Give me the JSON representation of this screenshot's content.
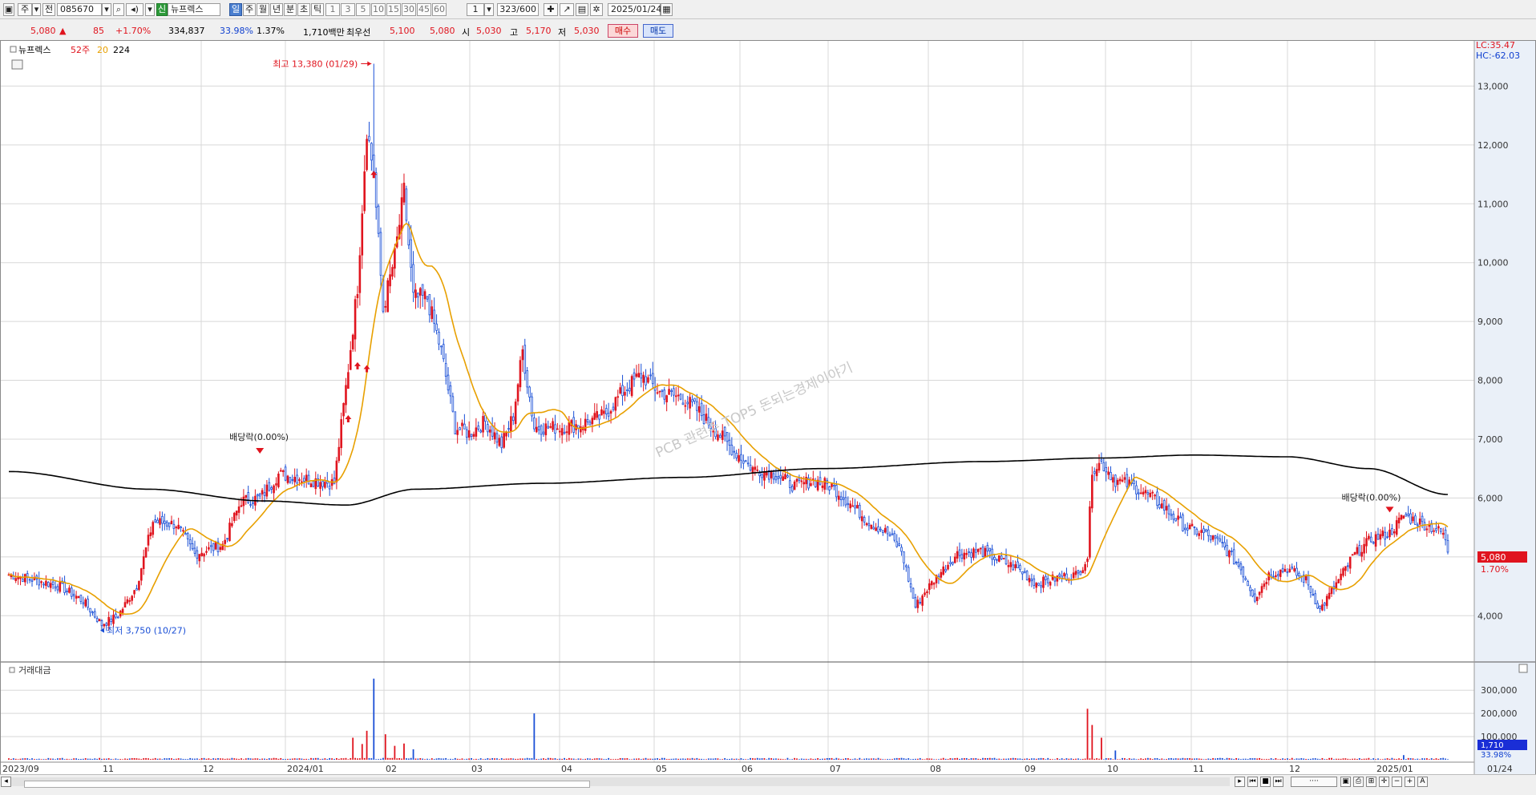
{
  "toolbar": {
    "market_sel": "주",
    "period_prefix": "전",
    "code": "085670",
    "stock_badge": "신",
    "stock_name": "뉴프렉스",
    "periods": [
      "일",
      "주",
      "월",
      "년",
      "분",
      "초",
      "틱"
    ],
    "active_period": "일",
    "minutes": [
      "1",
      "3",
      "5",
      "10",
      "15",
      "30",
      "45",
      "60"
    ],
    "count_sel": "1",
    "view_count": "323/600",
    "date": "2025/01/24"
  },
  "quote": {
    "price": "5,080",
    "up_arrow": "▲",
    "change": "85",
    "change_pct": "+1.70%",
    "volume": "334,837",
    "vol_ratio": "33.98%",
    "turnover": "1.37%",
    "amount": "1,710백만",
    "best_label": "최우선",
    "best_ask": "5,100",
    "best_bid": "5,080",
    "open_label": "시",
    "open": "5,030",
    "high_label": "고",
    "high": "5,170",
    "low_label": "저",
    "low": "5,030",
    "buy_btn": "매수",
    "sell_btn": "매도"
  },
  "legend": {
    "name": "뉴프렉스",
    "ma52": "52주",
    "ma20": "20",
    "ma224": "224"
  },
  "right_info": {
    "lc": "LC:35.47",
    "hc": "HC:-62.03"
  },
  "annotations": {
    "high": "최고 13,380 (01/29)",
    "low": "최저 3,750 (10/27)",
    "dividend1": "배당락(0.00%)",
    "dividend2": "배당락(0.00%)",
    "watermark": "PCB 관련주 TOP5 돈되는경제이야기"
  },
  "current_tag": {
    "price": "5,080",
    "pct": "1.70%"
  },
  "volume_panel": {
    "title": "거래대금",
    "ticks": [
      "300,000",
      "200,000",
      "100,000"
    ],
    "current": "1,710",
    "pct": "33.98%"
  },
  "x_labels": [
    "2023/09",
    "11",
    "12",
    "2024/01",
    "02",
    "03",
    "04",
    "05",
    "06",
    "07",
    "08",
    "09",
    "10",
    "11",
    "12",
    "2025/01",
    "01/24"
  ],
  "colors": {
    "up": "#e0141e",
    "down": "#1a4fd6",
    "ma20": "#e8a000",
    "ma224": "#000000",
    "grid": "#d8d8d8"
  },
  "chart_data": {
    "type": "candlestick",
    "y_ticks": [
      4000,
      5000,
      6000,
      7000,
      8000,
      9000,
      10000,
      11000,
      12000,
      13000
    ],
    "ylim": [
      3350,
      13700
    ],
    "anchors": [
      {
        "i": 0,
        "c": 4700
      },
      {
        "i": 12,
        "c": 4600
      },
      {
        "i": 22,
        "c": 4500
      },
      {
        "i": 32,
        "c": 4250
      },
      {
        "i": 40,
        "c": 3850
      },
      {
        "i": 47,
        "c": 4000
      },
      {
        "i": 55,
        "c": 4500
      },
      {
        "i": 62,
        "c": 5600
      },
      {
        "i": 72,
        "c": 5550
      },
      {
        "i": 80,
        "c": 5050
      },
      {
        "i": 92,
        "c": 5200
      },
      {
        "i": 100,
        "c": 5950
      },
      {
        "i": 108,
        "c": 6000
      },
      {
        "i": 116,
        "c": 6400
      },
      {
        "i": 124,
        "c": 6350
      },
      {
        "i": 132,
        "c": 6300
      },
      {
        "i": 140,
        "c": 6250
      },
      {
        "i": 146,
        "c": 8200
      },
      {
        "i": 150,
        "c": 9600
      },
      {
        "i": 154,
        "c": 12300
      },
      {
        "i": 157,
        "c": 11500
      },
      {
        "i": 161,
        "c": 9200
      },
      {
        "i": 166,
        "c": 10100
      },
      {
        "i": 170,
        "c": 11200
      },
      {
        "i": 174,
        "c": 9400
      },
      {
        "i": 180,
        "c": 9400
      },
      {
        "i": 186,
        "c": 8500
      },
      {
        "i": 192,
        "c": 7200
      },
      {
        "i": 198,
        "c": 7100
      },
      {
        "i": 205,
        "c": 7300
      },
      {
        "i": 212,
        "c": 6900
      },
      {
        "i": 217,
        "c": 7400
      },
      {
        "i": 221,
        "c": 8500
      },
      {
        "i": 226,
        "c": 7200
      },
      {
        "i": 236,
        "c": 7200
      },
      {
        "i": 246,
        "c": 7250
      },
      {
        "i": 256,
        "c": 7400
      },
      {
        "i": 264,
        "c": 7800
      },
      {
        "i": 272,
        "c": 8100
      },
      {
        "i": 280,
        "c": 7800
      },
      {
        "i": 290,
        "c": 7700
      },
      {
        "i": 296,
        "c": 7500
      },
      {
        "i": 303,
        "c": 7200
      },
      {
        "i": 312,
        "c": 6800
      },
      {
        "i": 320,
        "c": 6500
      },
      {
        "i": 330,
        "c": 6400
      },
      {
        "i": 338,
        "c": 6200
      },
      {
        "i": 346,
        "c": 6300
      },
      {
        "i": 354,
        "c": 6200
      },
      {
        "i": 362,
        "c": 5900
      },
      {
        "i": 370,
        "c": 5600
      },
      {
        "i": 378,
        "c": 5400
      },
      {
        "i": 384,
        "c": 5100
      },
      {
        "i": 390,
        "c": 4150
      },
      {
        "i": 394,
        "c": 4400
      },
      {
        "i": 400,
        "c": 4700
      },
      {
        "i": 408,
        "c": 5050
      },
      {
        "i": 418,
        "c": 5100
      },
      {
        "i": 426,
        "c": 4950
      },
      {
        "i": 434,
        "c": 4800
      },
      {
        "i": 442,
        "c": 4550
      },
      {
        "i": 452,
        "c": 4650
      },
      {
        "i": 460,
        "c": 4700
      },
      {
        "i": 464,
        "c": 5000
      },
      {
        "i": 466,
        "c": 6500
      },
      {
        "i": 470,
        "c": 6600
      },
      {
        "i": 476,
        "c": 6300
      },
      {
        "i": 484,
        "c": 6200
      },
      {
        "i": 492,
        "c": 6000
      },
      {
        "i": 498,
        "c": 5800
      },
      {
        "i": 506,
        "c": 5500
      },
      {
        "i": 514,
        "c": 5400
      },
      {
        "i": 522,
        "c": 5200
      },
      {
        "i": 530,
        "c": 4800
      },
      {
        "i": 536,
        "c": 4300
      },
      {
        "i": 542,
        "c": 4700
      },
      {
        "i": 550,
        "c": 4800
      },
      {
        "i": 558,
        "c": 4600
      },
      {
        "i": 564,
        "c": 4100
      },
      {
        "i": 572,
        "c": 4600
      },
      {
        "i": 578,
        "c": 5000
      },
      {
        "i": 586,
        "c": 5300
      },
      {
        "i": 594,
        "c": 5400
      },
      {
        "i": 600,
        "c": 5700
      },
      {
        "i": 606,
        "c": 5600
      },
      {
        "i": 612,
        "c": 5500
      },
      {
        "i": 617,
        "c": 5400
      },
      {
        "i": 619,
        "c": 5080
      }
    ],
    "n": 620,
    "high_point": {
      "i": 157,
      "value": 13380
    },
    "low_point": {
      "i": 40,
      "value": 3750
    },
    "ma224": [
      {
        "i": 0,
        "v": 6450
      },
      {
        "i": 60,
        "v": 6150
      },
      {
        "i": 110,
        "v": 5950
      },
      {
        "i": 145,
        "v": 5880
      },
      {
        "i": 175,
        "v": 6150
      },
      {
        "i": 230,
        "v": 6250
      },
      {
        "i": 290,
        "v": 6350
      },
      {
        "i": 350,
        "v": 6500
      },
      {
        "i": 420,
        "v": 6620
      },
      {
        "i": 470,
        "v": 6680
      },
      {
        "i": 510,
        "v": 6730
      },
      {
        "i": 550,
        "v": 6700
      },
      {
        "i": 585,
        "v": 6500
      },
      {
        "i": 619,
        "v": 6060
      }
    ],
    "volume_spikes": [
      {
        "i": 148,
        "v": 95000
      },
      {
        "i": 152,
        "v": 68000
      },
      {
        "i": 154,
        "v": 125000
      },
      {
        "i": 157,
        "v": 350000
      },
      {
        "i": 162,
        "v": 110000
      },
      {
        "i": 166,
        "v": 60000
      },
      {
        "i": 170,
        "v": 70000
      },
      {
        "i": 174,
        "v": 45000
      },
      {
        "i": 226,
        "v": 200000
      },
      {
        "i": 464,
        "v": 220000
      },
      {
        "i": 466,
        "v": 150000
      },
      {
        "i": 470,
        "v": 95000
      },
      {
        "i": 476,
        "v": 40000
      },
      {
        "i": 600,
        "v": 20000
      }
    ],
    "vol_ticks": [
      100000,
      200000,
      300000
    ],
    "vol_max": 370000
  }
}
